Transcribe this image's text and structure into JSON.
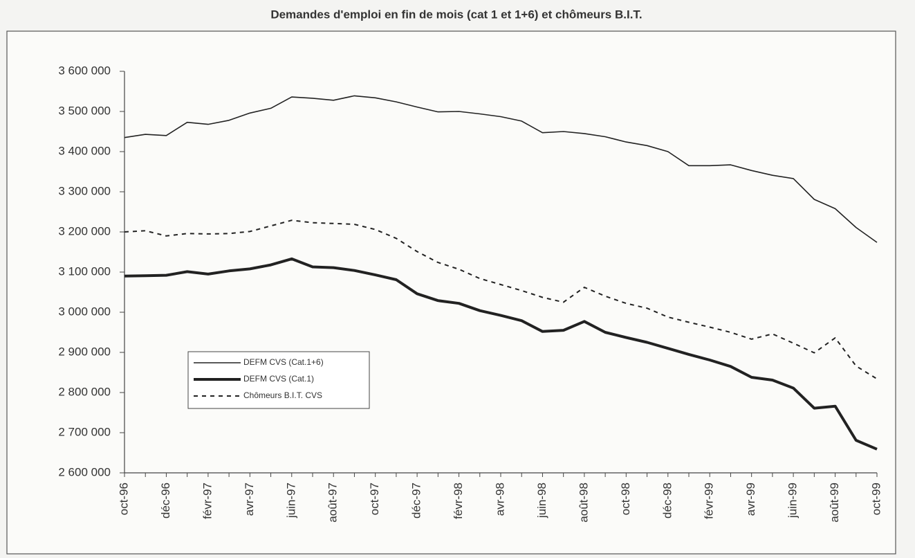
{
  "chart_data": {
    "type": "line",
    "title": "Demandes d'emploi en fin de mois (cat 1 et 1+6) et chômeurs B.I.T.",
    "categories": [
      "oct-96",
      null,
      "déc-96",
      null,
      "févr-97",
      null,
      "avr-97",
      null,
      "juin-97",
      null,
      "août-97",
      null,
      "oct-97",
      null,
      "déc-97",
      null,
      "févr-98",
      null,
      "avr-98",
      null,
      "juin-98",
      null,
      "août-98",
      null,
      "oct-98",
      null,
      "déc-98",
      null,
      "févr-99",
      null,
      "avr-99",
      null,
      "juin-99",
      null,
      "août-99",
      null,
      "oct-99"
    ],
    "series": [
      {
        "name": "DEFM CVS (Cat.1+6)",
        "color": "#222222",
        "line_width": 1.6,
        "dash": false,
        "values": [
          3435000,
          3443000,
          3440000,
          3473000,
          3468000,
          3478000,
          3496000,
          3508000,
          3536000,
          3533000,
          3528000,
          3539000,
          3534000,
          3524000,
          3511000,
          3499000,
          3500000,
          3494000,
          3487000,
          3476000,
          3447000,
          3450000,
          3445000,
          3437000,
          3424000,
          3415000,
          3400000,
          3365000,
          3365000,
          3367000,
          3353000,
          3341000,
          3333000,
          3281000,
          3258000,
          3211000,
          3174000
        ]
      },
      {
        "name": "DEFM CVS (Cat.1)",
        "color": "#222222",
        "line_width": 4,
        "dash": false,
        "values": [
          3090000,
          3091000,
          3092000,
          3101000,
          3095000,
          3103000,
          3108000,
          3118000,
          3133000,
          3113000,
          3111000,
          3104000,
          3093000,
          3081000,
          3046000,
          3029000,
          3022000,
          3004000,
          2992000,
          2979000,
          2952000,
          2955000,
          2977000,
          2950000,
          2937000,
          2925000,
          2910000,
          2895000,
          2881000,
          2865000,
          2838000,
          2831000,
          2811000,
          2761000,
          2766000,
          2681000,
          2659000
        ]
      },
      {
        "name": "Chômeurs B.I.T. CVS",
        "color": "#222222",
        "line_width": 2,
        "dash": true,
        "values": [
          3200000,
          3203000,
          3190000,
          3196000,
          3195000,
          3196000,
          3201000,
          3215000,
          3229000,
          3223000,
          3221000,
          3219000,
          3206000,
          3184000,
          3151000,
          3124000,
          3107000,
          3084000,
          3069000,
          3054000,
          3037000,
          3025000,
          3062000,
          3040000,
          3022000,
          3010000,
          2988000,
          2975000,
          2963000,
          2950000,
          2933000,
          2946000,
          2923000,
          2899000,
          2936000,
          2866000,
          2834000
        ]
      }
    ],
    "ylim": [
      2600000,
      3600000
    ],
    "yticks": [
      {
        "value": 2600000,
        "label": "2 600 000"
      },
      {
        "value": 2700000,
        "label": "2 700 000"
      },
      {
        "value": 2800000,
        "label": "2 800 000"
      },
      {
        "value": 2900000,
        "label": "2 900 000"
      },
      {
        "value": 3000000,
        "label": "3 000 000"
      },
      {
        "value": 3100000,
        "label": "3 100 000"
      },
      {
        "value": 3200000,
        "label": "3 200 000"
      },
      {
        "value": 3300000,
        "label": "3 300 000"
      },
      {
        "value": 3400000,
        "label": "3 400 000"
      },
      {
        "value": 3500000,
        "label": "3 500 000"
      },
      {
        "value": 3600000,
        "label": "3 600 000"
      }
    ],
    "grid": false,
    "legend": "lower left"
  }
}
